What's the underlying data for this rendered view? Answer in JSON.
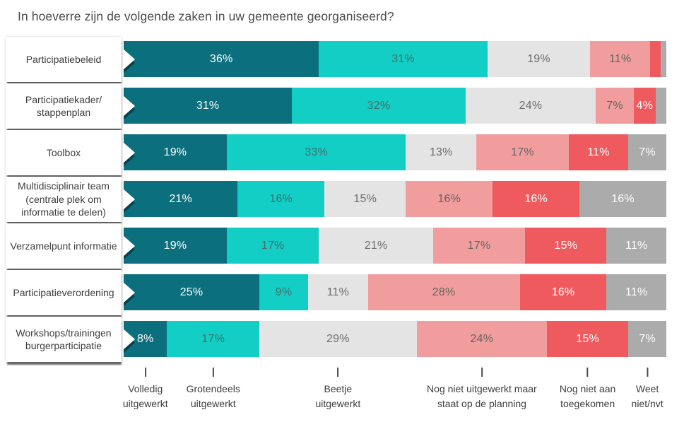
{
  "title": "In hoeverre zijn de volgende zaken in uw gemeente georganiseerd?",
  "chart_data": {
    "type": "bar",
    "variant": "horizontal-stacked-100-percent",
    "title": "In hoeverre zijn de volgende zaken in uw gemeente georganiseerd?",
    "xlim": [
      0,
      100
    ],
    "grid": false,
    "legend_position": "bottom-axis",
    "legend": [
      {
        "label": "Volledig uitgewerkt",
        "lines": [
          "Volledig",
          "uitgewerkt"
        ],
        "color": "#0b6f7d"
      },
      {
        "label": "Grotendeels uitgewerkt",
        "lines": [
          "Grotendeels",
          "uitgewerkt"
        ],
        "color": "#12cec5"
      },
      {
        "label": "Beetje uitgewerkt",
        "lines": [
          "Beetje",
          "uitgewerkt"
        ],
        "color": "#e4e4e4"
      },
      {
        "label": "Nog niet uitgewerkt maar staat op de planning",
        "lines": [
          "Nog niet uitgewerkt maar",
          "staat op de planning"
        ],
        "color": "#f29d9d"
      },
      {
        "label": "Nog niet aan toegekomen",
        "lines": [
          "Nog niet aan",
          "toegekomen"
        ],
        "color": "#ef5a5e"
      },
      {
        "label": "Weet niet/nvt",
        "lines": [
          "Weet",
          "niet/nvt"
        ],
        "color": "#ababab"
      }
    ],
    "colors": {
      "segments": [
        "#0b6f7d",
        "#12cec5",
        "#e4e4e4",
        "#f29d9d",
        "#ef5a5e",
        "#ababab"
      ],
      "segment_text": [
        "#ffffff",
        "#42706d",
        "#6c6c6c",
        "#636363",
        "#ffffff",
        "#ffffff"
      ],
      "label_box_bg": "#ffffff",
      "label_box_shadow": "#555555",
      "title_text": "#4c4c4c",
      "axis_tick": "#4a4a4a"
    },
    "rows": [
      {
        "label": "Participatiebeleid",
        "label_lines": [
          "Participatiebeleid"
        ],
        "values": [
          36,
          31,
          19,
          11,
          2,
          1
        ],
        "value_labels": [
          "36%",
          "31%",
          "19%",
          "11%",
          "",
          ""
        ]
      },
      {
        "label": "Participatiekader/stappenplan",
        "label_lines": [
          "Participatiekader/",
          "stappenplan"
        ],
        "values": [
          31,
          32,
          24,
          7,
          4,
          2
        ],
        "value_labels": [
          "31%",
          "32%",
          "24%",
          "7%",
          "4%",
          ""
        ]
      },
      {
        "label": "Toolbox",
        "label_lines": [
          "Toolbox"
        ],
        "values": [
          19,
          33,
          13,
          17,
          11,
          7
        ],
        "value_labels": [
          "19%",
          "33%",
          "13%",
          "17%",
          "11%",
          "7%"
        ]
      },
      {
        "label": "Multidisciplinair team (centrale plek om informatie te delen)",
        "label_lines": [
          "Multidisciplinair team",
          "(centrale plek om",
          "informatie te delen)"
        ],
        "values": [
          21,
          16,
          15,
          16,
          16,
          16
        ],
        "value_labels": [
          "21%",
          "16%",
          "15%",
          "16%",
          "16%",
          "16%"
        ]
      },
      {
        "label": "Verzamelpunt informatie",
        "label_lines": [
          "Verzamelpunt informatie"
        ],
        "values": [
          19,
          17,
          21,
          17,
          15,
          11
        ],
        "value_labels": [
          "19%",
          "17%",
          "21%",
          "17%",
          "15%",
          "11%"
        ]
      },
      {
        "label": "Participatieverordening",
        "label_lines": [
          "Participatieverordening"
        ],
        "values": [
          25,
          9,
          11,
          28,
          16,
          11
        ],
        "value_labels": [
          "25%",
          "9%",
          "11%",
          "28%",
          "16%",
          "11%"
        ]
      },
      {
        "label": "Workshops/trainingen burgerparticipatie",
        "label_lines": [
          "Workshops/trainingen",
          "burgerparticipatie"
        ],
        "values": [
          8,
          17,
          29,
          24,
          15,
          7
        ],
        "value_labels": [
          "8%",
          "17%",
          "29%",
          "24%",
          "15%",
          "7%"
        ]
      }
    ]
  }
}
